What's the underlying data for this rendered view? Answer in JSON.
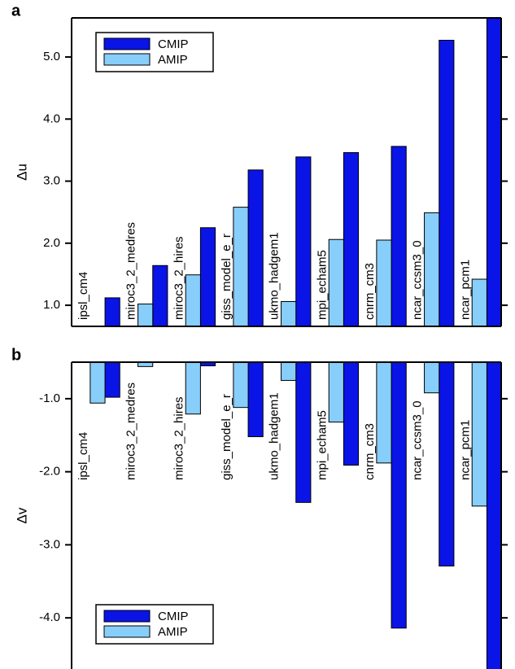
{
  "chart_data": [
    {
      "type": "bar",
      "panel_label": "a",
      "ylabel": "Δu",
      "categories": [
        "ipsl_cm4",
        "miroc3_2_medres",
        "miroc3_2_hires",
        "giss_model_e_r",
        "ukmo_hadgem1",
        "mpi_echam5",
        "cnrm_cm3",
        "ncar_ccsm3_0",
        "ncar_pcm1"
      ],
      "series": [
        {
          "name": "CMIP",
          "color": "#0a14e6",
          "values": [
            1.12,
            1.64,
            2.25,
            3.18,
            3.39,
            3.46,
            3.56,
            5.27,
            5.7
          ]
        },
        {
          "name": "AMIP",
          "color": "#87cefa",
          "values": [
            null,
            1.02,
            1.49,
            2.58,
            1.06,
            2.06,
            2.05,
            2.49,
            1.42
          ]
        }
      ],
      "ylim": [
        0.66,
        5.63
      ],
      "yticks": [
        {
          "value": 1,
          "label": "1.0"
        },
        {
          "value": 2,
          "label": "2.0"
        },
        {
          "value": 3,
          "label": "3.0"
        },
        {
          "value": 4,
          "label": "4.0"
        },
        {
          "value": 5,
          "label": "5.0"
        }
      ],
      "legend": "upper left"
    },
    {
      "type": "bar",
      "panel_label": "b",
      "ylabel": "Δv",
      "categories": [
        "ipsl_cm4",
        "miroc3_2_medres",
        "miroc3_2_hires",
        "giss_model_e_r",
        "ukmo_hadgem1",
        "mpi_echam5",
        "cnrm_cm3",
        "ncar_ccsm3_0",
        "ncar_pcm1"
      ],
      "series": [
        {
          "name": "CMIP",
          "color": "#0a14e6",
          "values": [
            -0.98,
            null,
            -0.55,
            -1.52,
            -2.42,
            -1.91,
            -4.14,
            -3.29,
            -4.8
          ]
        },
        {
          "name": "AMIP",
          "color": "#87cefa",
          "values": [
            -1.06,
            -0.56,
            -1.21,
            -1.12,
            -0.75,
            -1.32,
            -1.88,
            -0.92,
            -2.47
          ]
        }
      ],
      "ylim": [
        -4.7,
        -0.5
      ],
      "yticks": [
        {
          "value": -1,
          "label": "-1.0"
        },
        {
          "value": -2,
          "label": "-2.0"
        },
        {
          "value": -3,
          "label": "-3.0"
        },
        {
          "value": -4,
          "label": "-4.0"
        }
      ],
      "legend": "lower left"
    }
  ]
}
